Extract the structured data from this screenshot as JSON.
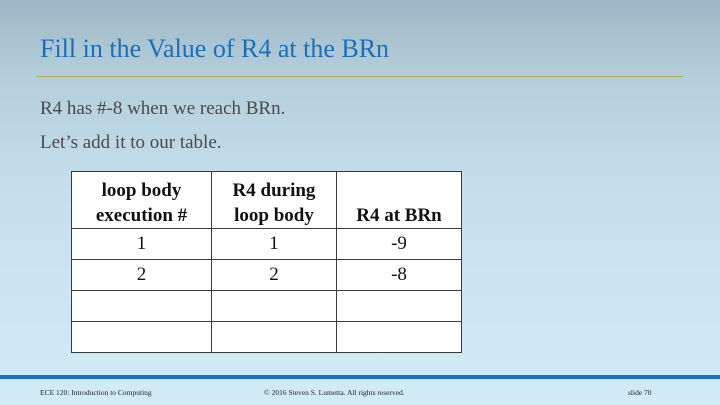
{
  "slide": {
    "title": "Fill in the Value of R4 at the BRn",
    "lines": [
      "R4 has #-8 when we reach BRn.",
      "Let’s add it to our table."
    ]
  },
  "table": {
    "headers": [
      [
        "loop body",
        "execution #"
      ],
      [
        "R4 during",
        "loop body"
      ],
      [
        "",
        "R4 at BRn"
      ]
    ],
    "rows": [
      [
        "1",
        "1",
        "-9"
      ],
      [
        "2",
        "2",
        "-8"
      ],
      [
        "",
        "",
        ""
      ],
      [
        "",
        "",
        ""
      ]
    ]
  },
  "footer": {
    "course": "ECE 120: Introduction to Computing",
    "copyright": "© 2016 Steven S. Lumetta.  All rights reserved.",
    "slide_number": "slide 70"
  },
  "colors": {
    "title": "#1a6fb8",
    "rule": "#b8a85a",
    "footer_bar": "#1f6fc0"
  }
}
